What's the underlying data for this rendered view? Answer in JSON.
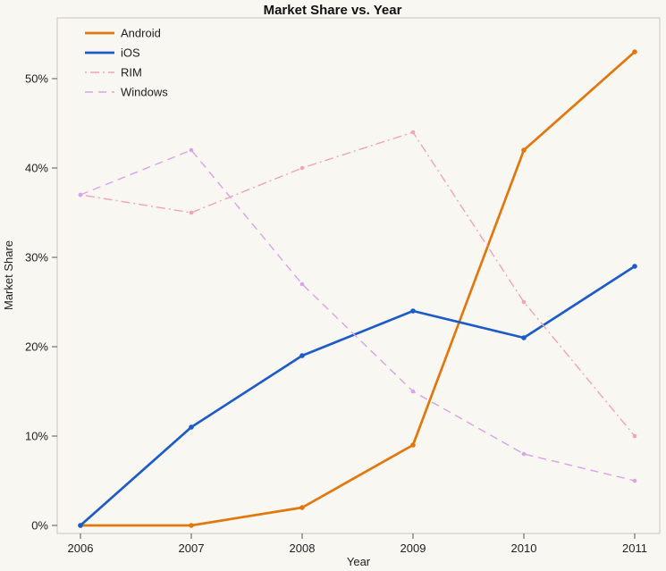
{
  "colors": {
    "background": "#f9f7f2",
    "plot_frame": "#c9c5bd",
    "tick_mark": "#555555",
    "text": "#222222"
  },
  "chart_data": {
    "type": "line",
    "title": "Market Share vs. Year",
    "xlabel": "Year",
    "ylabel": "Market Share",
    "x": [
      2006,
      2007,
      2008,
      2009,
      2010,
      2011
    ],
    "x_tick_labels": [
      "2006",
      "2007",
      "2008",
      "2009",
      "2010",
      "2011"
    ],
    "y_ticks": [
      "0%",
      "10%",
      "20%",
      "30%",
      "40%",
      "50%"
    ],
    "y_tick_values": [
      0,
      10,
      20,
      30,
      40,
      50
    ],
    "ylim": [
      0,
      57
    ],
    "grid": false,
    "legend_position": "top-left",
    "series": [
      {
        "name": "Android",
        "color": "#e2770d",
        "style": "solid",
        "width": 2.7,
        "values": [
          0,
          0,
          2,
          9,
          42,
          53
        ]
      },
      {
        "name": "iOS",
        "color": "#1d5cc8",
        "style": "solid",
        "width": 2.7,
        "values": [
          0,
          11,
          19,
          24,
          21,
          29
        ]
      },
      {
        "name": "RIM",
        "color": "#f2a3b5",
        "style": "dashdot",
        "width": 1.4,
        "values": [
          37,
          35,
          40,
          44,
          25,
          10
        ]
      },
      {
        "name": "Windows",
        "color": "#d9a3e8",
        "style": "dashed",
        "width": 1.4,
        "values": [
          37,
          42,
          27,
          15,
          8,
          5
        ]
      }
    ]
  }
}
